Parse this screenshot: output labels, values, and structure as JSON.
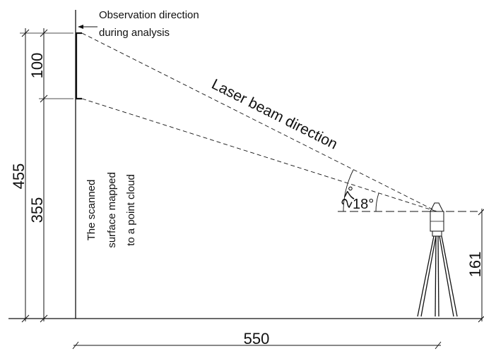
{
  "labels": {
    "observation_line1": "Observation direction",
    "observation_line2": "during analysis",
    "laser_beam": "Laser beam direction",
    "surface_line1": "The scanned",
    "surface_line2": "surface mapped",
    "surface_line3": "to a point cloud"
  },
  "dimensions": {
    "total_height": "455",
    "lower_height": "355",
    "upper_height": "100",
    "scanner_height": "161",
    "distance": "550"
  },
  "angles": {
    "upper": "27°",
    "lower": "18°"
  }
}
